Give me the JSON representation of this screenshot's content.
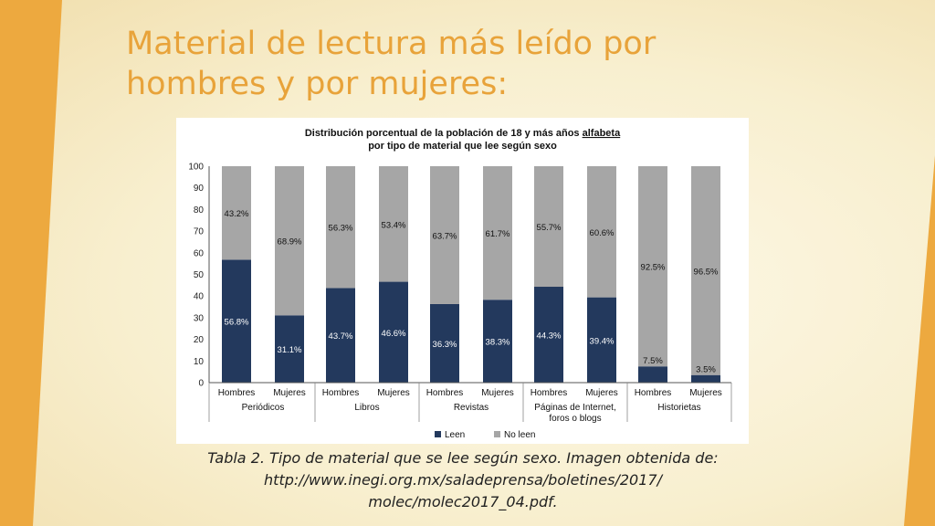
{
  "slide": {
    "title": "Material de lectura más leído por hombres y por mujeres:",
    "caption": "Tabla 2. Tipo de material que se lee según sexo. Imagen obtenida de: http://www.inegi.org.mx/saladeprensa/boletines/2017/ molec/molec2017_04.pdf.",
    "accent_color": "#e8a33a",
    "background_color": "#f8efcf"
  },
  "chart_data": {
    "type": "bar",
    "stacked": true,
    "title_line1": "Distribución porcentual de la población de 18 y más años alfabeta",
    "title_line2": "por tipo de material que lee según sexo",
    "title_underlined_word": "alfabeta",
    "ylim": [
      0,
      100
    ],
    "yticks": [
      0,
      10,
      20,
      30,
      40,
      50,
      60,
      70,
      80,
      90,
      100
    ],
    "groups": [
      "Periódicos",
      "Libros",
      "Revistas",
      "Páginas de Internet, foros o blogs",
      "Historietas"
    ],
    "group_label_lines": [
      [
        "Periódicos"
      ],
      [
        "Libros"
      ],
      [
        "Revistas"
      ],
      [
        "Páginas de Internet,",
        "foros o blogs"
      ],
      [
        "Historietas"
      ]
    ],
    "categories": [
      "Hombres",
      "Mujeres",
      "Hombres",
      "Mujeres",
      "Hombres",
      "Mujeres",
      "Hombres",
      "Mujeres",
      "Hombres",
      "Mujeres"
    ],
    "series": [
      {
        "name": "Leen",
        "color": "#23395d",
        "values": [
          56.8,
          31.1,
          43.7,
          46.6,
          36.3,
          38.3,
          44.3,
          39.4,
          7.5,
          3.5
        ],
        "labels": [
          "56.8%",
          "31.1%",
          "43.7%",
          "46.6%",
          "36.3%",
          "38.3%",
          "44.3%",
          "39.4%",
          "7.5%",
          "3.5%"
        ]
      },
      {
        "name": "No leen",
        "color": "#a6a6a6",
        "values": [
          43.2,
          68.9,
          56.3,
          53.4,
          63.7,
          61.7,
          55.7,
          60.6,
          92.5,
          96.5
        ],
        "labels": [
          "43.2%",
          "68.9%",
          "56.3%",
          "53.4%",
          "63.7%",
          "61.7%",
          "55.7%",
          "60.6%",
          "92.5%",
          "96.5%"
        ]
      }
    ],
    "legend_position": "bottom",
    "grid": false
  }
}
